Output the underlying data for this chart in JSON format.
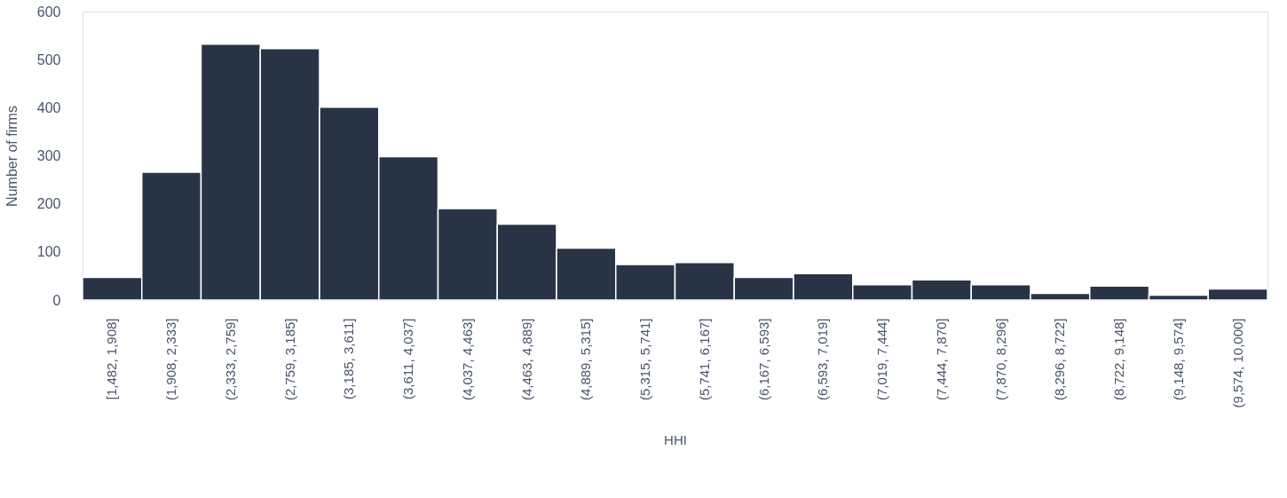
{
  "chart_data": {
    "type": "bar",
    "xlabel": "HHI",
    "ylabel": "Number of firms",
    "categories": [
      "[1,482, 1,908]",
      "(1,908, 2,333]",
      "(2,333, 2,759]",
      "(2,759, 3,185]",
      "(3,185, 3,611]",
      "(3,611, 4,037]",
      "(4,037, 4,463]",
      "(4,463, 4,889]",
      "(4,889, 5,315]",
      "(5,315, 5,741]",
      "(5,741, 6,167]",
      "(6,167, 6,593]",
      "(6,593, 7,019]",
      "(7,019, 7,444]",
      "(7,444, 7,870]",
      "(7,870, 8,296]",
      "(8,296, 8,722]",
      "(8,722, 9,148]",
      "(9,148, 9,574]",
      "(9,574, 10,000]"
    ],
    "series": [
      {
        "color": "#283445",
        "values": [
          47,
          266,
          532,
          523,
          401,
          298,
          190,
          158,
          108,
          74,
          78,
          47,
          55,
          32,
          42,
          32,
          14,
          29,
          10,
          23
        ]
      }
    ],
    "ylim": [
      0,
      600
    ],
    "yticks": [
      0,
      100,
      200,
      300,
      400,
      500,
      600
    ],
    "grid": false,
    "legend": false
  }
}
